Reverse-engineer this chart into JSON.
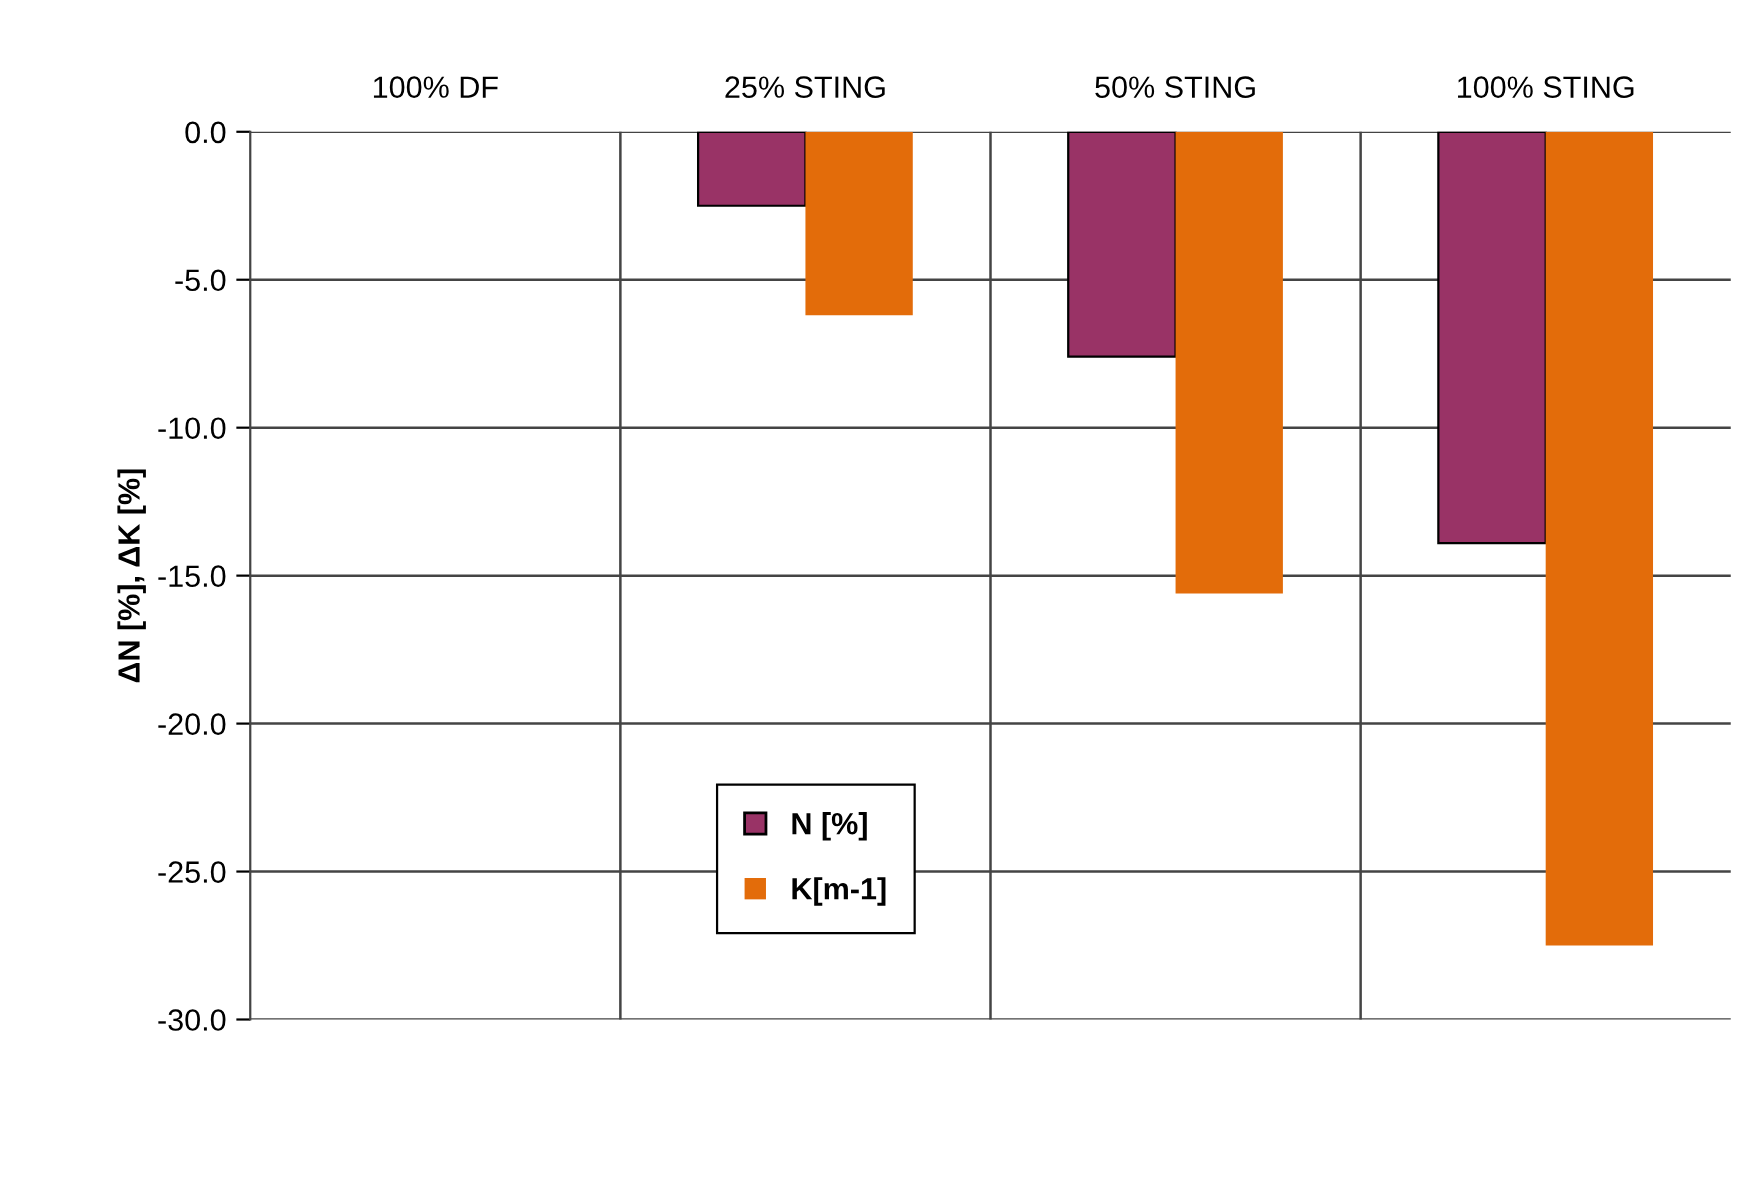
{
  "chart_data": {
    "type": "bar",
    "ylabel": "ΔN [%], ΔK [%]",
    "categories": [
      "100% DF",
      "25% STING",
      "50% STING",
      "100% STING"
    ],
    "series": [
      {
        "name": "N [%]",
        "color": "#993366",
        "values": [
          null,
          -2.5,
          -7.6,
          -13.9
        ]
      },
      {
        "name": "K[m-1]",
        "color": "#e36c0a",
        "values": [
          null,
          -6.2,
          -15.6,
          -27.5
        ]
      }
    ],
    "ylim": [
      -30,
      0
    ],
    "yticks": [
      {
        "value": 0,
        "label": "0.0"
      },
      {
        "value": -5,
        "label": "-5.0"
      },
      {
        "value": -10,
        "label": "-10.0"
      },
      {
        "value": -15,
        "label": "-15.0"
      },
      {
        "value": -20,
        "label": "-20.0"
      },
      {
        "value": -25,
        "label": "-25.0"
      },
      {
        "value": -30,
        "label": "-30.0"
      }
    ],
    "grid": true,
    "legend": "bottom left"
  }
}
